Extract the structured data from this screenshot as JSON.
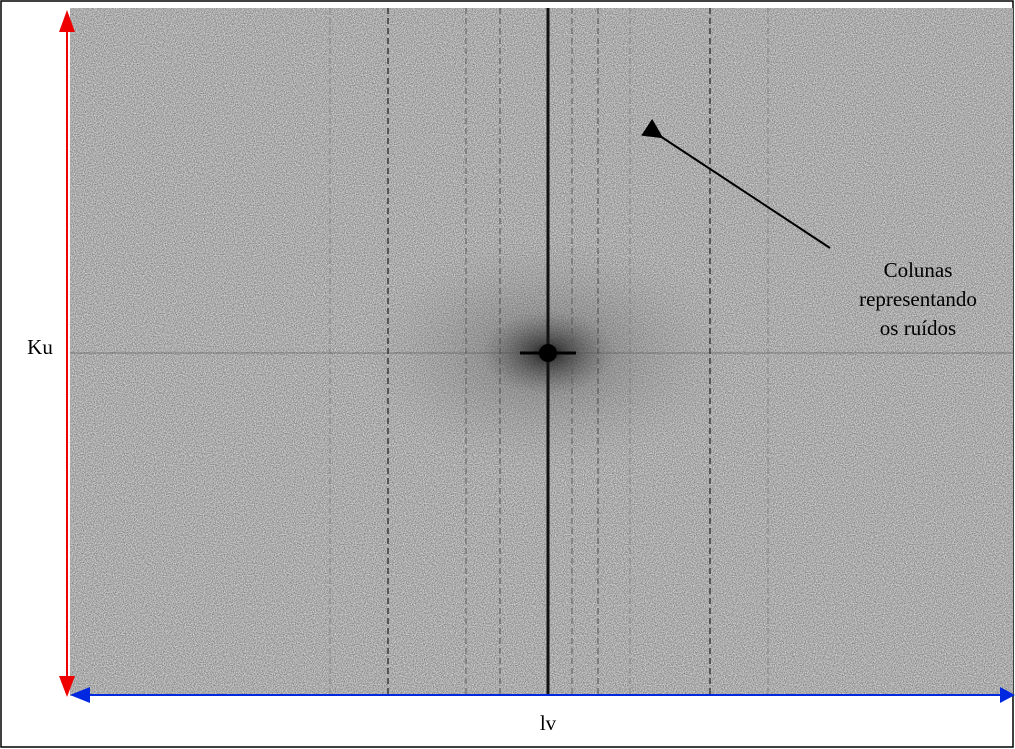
{
  "axes": {
    "vertical": "Ku",
    "horizontal": "lv"
  },
  "annotation": {
    "lines": [
      "Colunas",
      "representando",
      "os ruídos"
    ]
  }
}
